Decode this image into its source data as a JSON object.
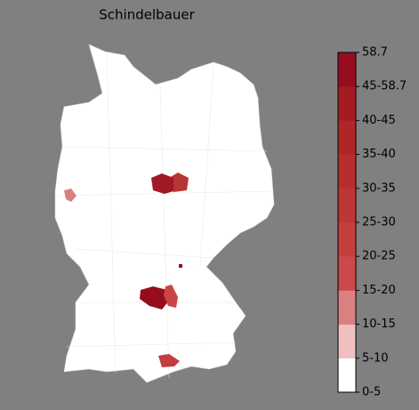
{
  "map": {
    "title": "Schindelbauer",
    "colorbar": {
      "labels": [
        "0-5",
        "5-10",
        "10-15",
        "15-20",
        "20-25",
        "25-30",
        "30-35",
        "35-40",
        "40-45",
        "45-58.7",
        "58.7"
      ],
      "colors": [
        "#ffffff",
        "#f0c0c0",
        "#d98080",
        "#cd4848",
        "#c63f3f",
        "#bf3636",
        "#b82e2e",
        "#b02525",
        "#a61b22",
        "#970c1f"
      ]
    }
  }
}
